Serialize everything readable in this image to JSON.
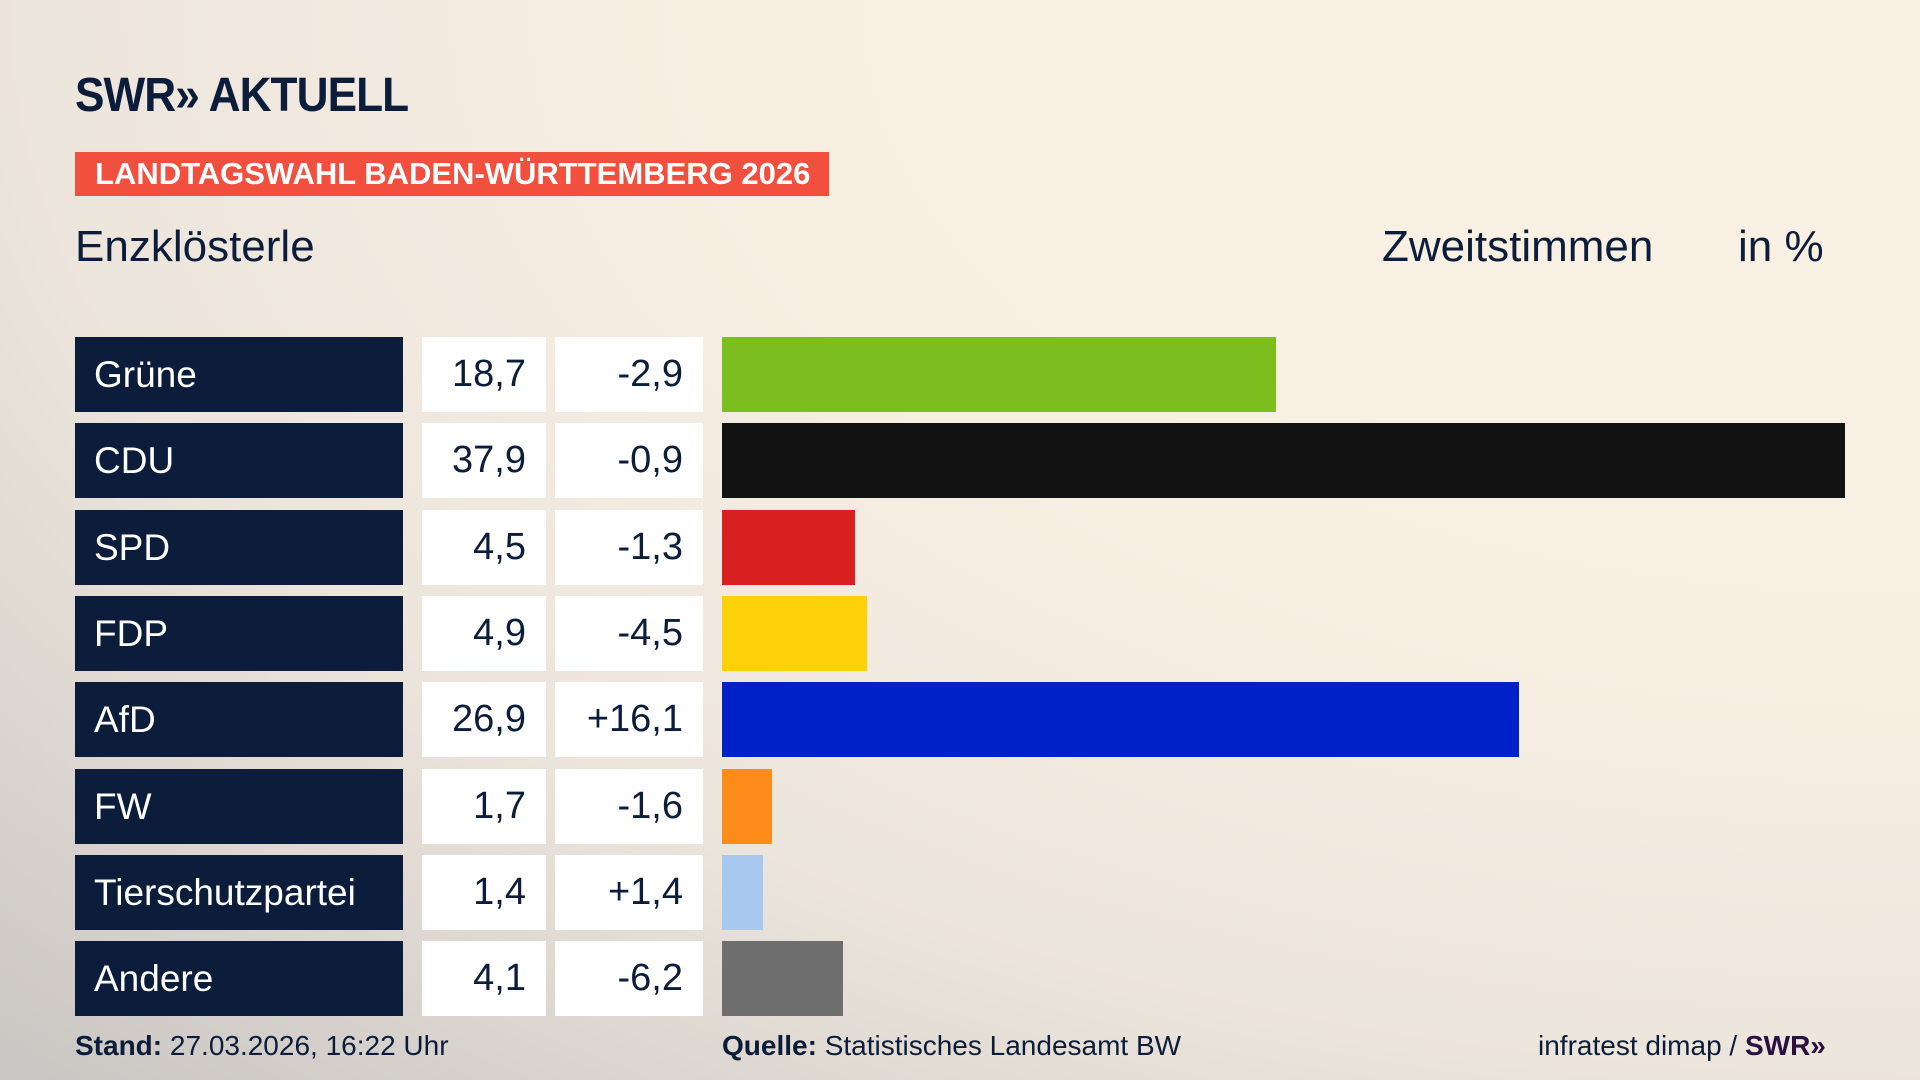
{
  "header": {
    "logo": "SWR» AKTUELL",
    "banner": "LANDTAGSWAHL BADEN-WÜRTTEMBERG 2026",
    "banner_color": "#f24f3e"
  },
  "subtitle": "Enzklösterle",
  "measure": "Zweitstimmen",
  "unit": "in %",
  "chart_data": {
    "type": "bar",
    "orientation": "horizontal",
    "title": "Enzklösterle",
    "categories": [
      "Grüne",
      "CDU",
      "SPD",
      "FDP",
      "AfD",
      "FW",
      "Tierschutzpartei",
      "Andere"
    ],
    "values": [
      18.7,
      37.9,
      4.5,
      4.9,
      26.9,
      1.7,
      1.4,
      4.1
    ],
    "value_labels": [
      "18,7",
      "37,9",
      "4,5",
      "4,9",
      "26,9",
      "1,7",
      "1,4",
      "4,1"
    ],
    "changes": [
      "-2,9",
      "-0,9",
      "-1,3",
      "-4,5",
      "+16,1",
      "-1,6",
      "+1,4",
      "-6,2"
    ],
    "colors": [
      "#7bbe1e",
      "#121212",
      "#d92020",
      "#fdd10a",
      "#0020c8",
      "#fd8c1a",
      "#a9c8f0",
      "#6e6e6e"
    ],
    "xlim": [
      0,
      37.9
    ]
  },
  "footer": {
    "stand_label": "Stand:",
    "stand_value": "27.03.2026, 16:22 Uhr",
    "source_label": "Quelle:",
    "source_value": "Statistisches Landesamt BW",
    "credit": "infratest dimap /",
    "credit_logo": "SWR»"
  }
}
